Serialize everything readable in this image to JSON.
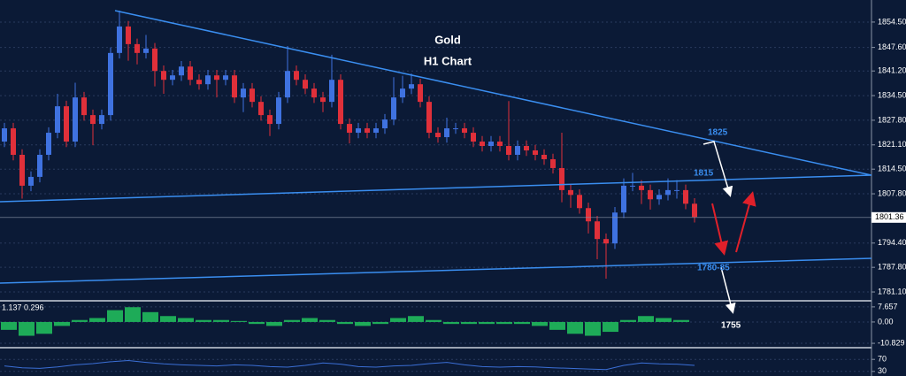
{
  "chart_data": [
    {
      "type": "candlestick",
      "title": "Gold",
      "subtitle": "H1 Chart",
      "annotations": [
        "1825",
        "1815",
        "1780-85",
        "1755"
      ],
      "up_color": "#3f72e0",
      "down_color": "#e0303a",
      "grid": true,
      "ylim": [
        1778.7,
        1860.5
      ],
      "yticks": [
        {
          "value": 1854.5,
          "label": "1854.50"
        },
        {
          "value": 1847.6,
          "label": "1847.60"
        },
        {
          "value": 1841.2,
          "label": "1841.20"
        },
        {
          "value": 1834.5,
          "label": "1834.50"
        },
        {
          "value": 1827.8,
          "label": "1827.80"
        },
        {
          "value": 1821.1,
          "label": "1821.10"
        },
        {
          "value": 1814.5,
          "label": "1814.50"
        },
        {
          "value": 1807.8,
          "label": "1807.80"
        },
        {
          "value": 1794.4,
          "label": "1794.40"
        },
        {
          "value": 1787.8,
          "label": "1787.80"
        },
        {
          "value": 1781.1,
          "label": "1781.10"
        }
      ],
      "current_price": {
        "value": 1801.36,
        "label": "1801.36"
      },
      "open": [
        1822.0,
        1825.6,
        1818.4,
        1810.0,
        1812.4,
        1818.4,
        1824.4,
        1831.6,
        1822.0,
        1834.0,
        1829.2,
        1826.8,
        1829.2,
        1846.1,
        1853.3,
        1848.5,
        1846.1,
        1847.3,
        1841.2,
        1838.8,
        1840.0,
        1842.4,
        1838.8,
        1837.6,
        1840.0,
        1838.8,
        1840.0,
        1834.0,
        1836.4,
        1832.8,
        1829.2,
        1826.8,
        1834.0,
        1841.2,
        1838.8,
        1836.4,
        1834.0,
        1832.8,
        1838.8,
        1826.8,
        1824.4,
        1825.6,
        1824.4,
        1825.6,
        1828.0,
        1834.0,
        1836.4,
        1837.6,
        1832.8,
        1824.4,
        1823.2,
        1825.6,
        1825.6,
        1824.4,
        1822.0,
        1820.8,
        1822.0,
        1820.8,
        1818.4,
        1820.8,
        1819.6,
        1818.4,
        1817.2,
        1814.8,
        1808.8,
        1807.5,
        1803.9,
        1800.3,
        1795.5,
        1794.3,
        1802.7,
        1810.0,
        1810.0,
        1808.8,
        1806.3,
        1807.5,
        1808.8,
        1808.8,
        1805.1
      ],
      "high": [
        1827.1,
        1827.1,
        1819.9,
        1813.9,
        1819.9,
        1825.9,
        1835.0,
        1833.1,
        1838.0,
        1835.5,
        1830.7,
        1830.7,
        1847.6,
        1857.6,
        1854.8,
        1850.0,
        1851.0,
        1848.8,
        1842.7,
        1841.5,
        1843.9,
        1843.9,
        1840.3,
        1841.5,
        1841.5,
        1841.5,
        1841.5,
        1837.9,
        1837.9,
        1834.3,
        1830.7,
        1835.5,
        1848.0,
        1842.7,
        1840.3,
        1837.9,
        1835.5,
        1845.6,
        1840.3,
        1828.3,
        1827.1,
        1827.1,
        1827.1,
        1829.5,
        1839.5,
        1839.9,
        1840.5,
        1839.1,
        1834.3,
        1825.9,
        1828.5,
        1827.1,
        1827.1,
        1825.9,
        1823.5,
        1823.5,
        1823.5,
        1833.0,
        1822.3,
        1822.3,
        1821.1,
        1819.9,
        1818.7,
        1824.4,
        1810.3,
        1809.0,
        1805.4,
        1801.8,
        1797.0,
        1804.2,
        1812.0,
        1813.5,
        1811.5,
        1810.3,
        1809.0,
        1812.0,
        1811.5,
        1810.3,
        1806.6
      ],
      "low": [
        1820.5,
        1816.9,
        1806.5,
        1808.5,
        1810.9,
        1816.9,
        1822.9,
        1820.5,
        1820.5,
        1827.7,
        1821.0,
        1825.3,
        1827.7,
        1844.6,
        1844.0,
        1843.0,
        1844.6,
        1837.0,
        1835.0,
        1837.3,
        1838.5,
        1837.3,
        1836.1,
        1836.1,
        1834.0,
        1837.3,
        1832.5,
        1830.0,
        1831.3,
        1827.7,
        1823.5,
        1825.3,
        1832.5,
        1837.3,
        1834.9,
        1832.5,
        1830.0,
        1831.3,
        1825.3,
        1821.5,
        1822.9,
        1822.9,
        1822.9,
        1824.1,
        1826.5,
        1832.5,
        1834.9,
        1831.3,
        1822.9,
        1821.7,
        1821.7,
        1824.1,
        1822.9,
        1820.5,
        1819.3,
        1819.3,
        1819.3,
        1816.9,
        1816.9,
        1818.1,
        1816.9,
        1815.7,
        1813.3,
        1805.5,
        1804.0,
        1802.4,
        1797.0,
        1790.0,
        1784.7,
        1792.8,
        1801.2,
        1808.5,
        1805.0,
        1803.5,
        1804.8,
        1806.0,
        1806.5,
        1803.6,
        1800.0
      ],
      "close": [
        1825.6,
        1818.4,
        1810.0,
        1812.4,
        1818.4,
        1824.4,
        1831.6,
        1822.0,
        1834.0,
        1829.2,
        1826.8,
        1829.2,
        1846.1,
        1853.3,
        1848.5,
        1846.1,
        1847.3,
        1841.2,
        1838.8,
        1840.0,
        1842.4,
        1838.8,
        1837.6,
        1840.0,
        1838.8,
        1840.0,
        1834.0,
        1836.4,
        1832.8,
        1829.2,
        1826.8,
        1834.0,
        1841.2,
        1838.8,
        1836.4,
        1834.0,
        1832.8,
        1838.8,
        1826.8,
        1824.4,
        1825.6,
        1824.4,
        1825.6,
        1828.0,
        1834.0,
        1836.4,
        1837.6,
        1832.8,
        1824.4,
        1823.2,
        1825.6,
        1825.6,
        1824.4,
        1822.0,
        1820.8,
        1822.0,
        1820.8,
        1818.4,
        1820.8,
        1819.6,
        1818.4,
        1817.2,
        1814.8,
        1808.8,
        1807.5,
        1803.9,
        1800.3,
        1795.5,
        1794.3,
        1802.7,
        1810.0,
        1810.0,
        1808.8,
        1806.3,
        1807.5,
        1808.8,
        1808.8,
        1805.1,
        1801.5
      ]
    },
    {
      "type": "bar",
      "title": "1.137 0.296",
      "color": "#22c55e",
      "ylim": [
        -12.6,
        10.3
      ],
      "yticks": [
        7.657,
        {
          "value": 0,
          "label": "0.00"
        },
        -10.829
      ],
      "values": [
        -4,
        -7,
        -6,
        -2,
        1,
        2,
        6,
        7.5,
        5,
        3,
        2,
        1,
        1,
        0.5,
        -1,
        -2,
        1,
        2,
        1,
        -1,
        -2,
        -1,
        2,
        3,
        1,
        -1,
        -1,
        -1,
        -1,
        -1,
        -2,
        -4,
        -6,
        -7,
        -5,
        1,
        3,
        2,
        1
      ]
    },
    {
      "type": "line",
      "color": "#3b6fd6",
      "ylim": [
        0,
        100
      ],
      "yticks": [
        70,
        30
      ],
      "values": [
        48,
        42,
        40,
        45,
        52,
        56,
        62,
        66,
        60,
        55,
        52,
        50,
        48,
        52,
        50,
        46,
        44,
        50,
        58,
        54,
        46,
        44,
        48,
        50,
        56,
        60,
        52,
        46,
        44,
        46,
        45,
        42,
        40,
        38,
        36,
        50,
        58,
        55,
        54,
        50
      ]
    }
  ]
}
